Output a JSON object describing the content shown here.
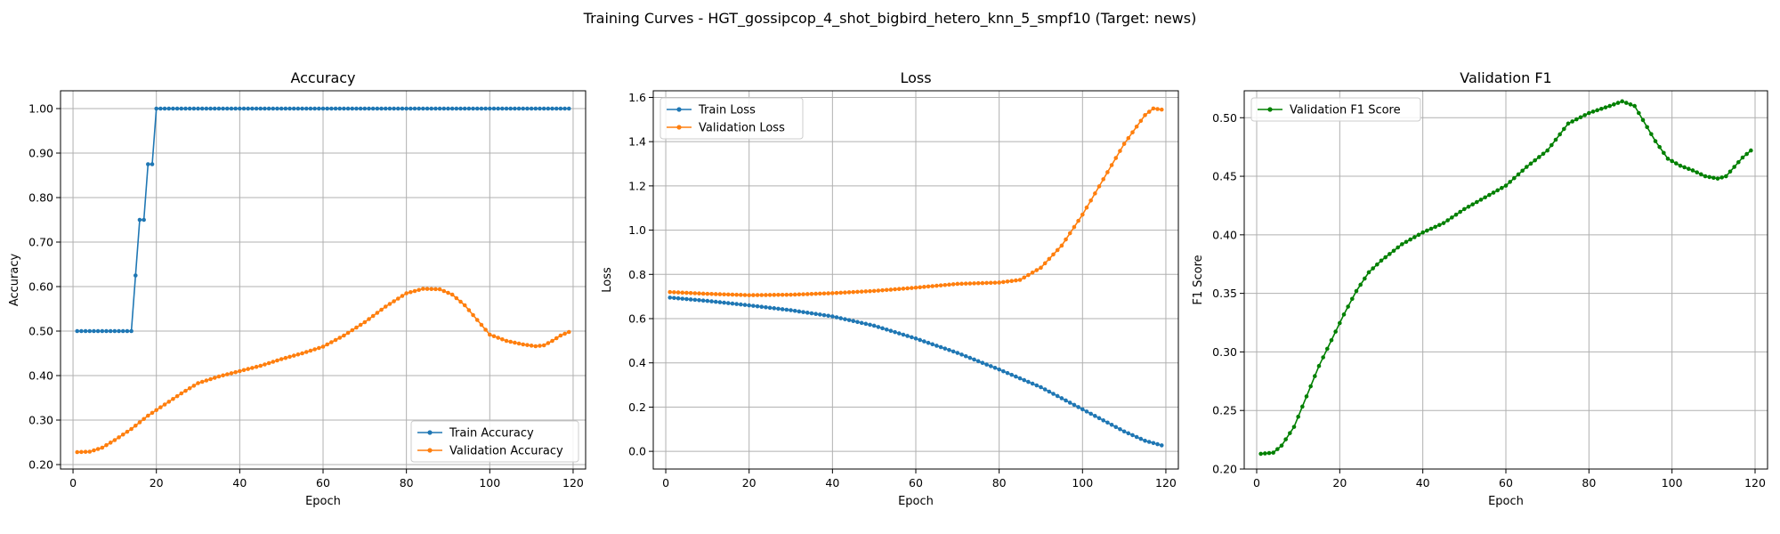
{
  "figure": {
    "title": "Training Curves - HGT_gossipcop_4_shot_bigbird_hetero_knn_5_smpf10 (Target: news)"
  },
  "colors": {
    "train": "#1f77b4",
    "validation": "#ff7f0e",
    "f1": "#008000"
  },
  "chart_data": [
    {
      "type": "line",
      "title": "Accuracy",
      "xlabel": "Epoch",
      "ylabel": "Accuracy",
      "xlim": [
        -3,
        123
      ],
      "ylim": [
        0.19,
        1.04
      ],
      "xticks": [
        0,
        20,
        40,
        60,
        80,
        100,
        120
      ],
      "yticks": [
        0.2,
        0.3,
        0.4,
        0.5,
        0.6,
        0.7,
        0.8,
        0.9,
        1.0
      ],
      "grid": true,
      "legend": "lower right",
      "x": {
        "start": 1,
        "end": 119
      },
      "series": [
        {
          "name": "Train Accuracy",
          "color": "#1f77b4",
          "knots": [
            [
              1,
              0.5
            ],
            [
              14,
              0.5
            ],
            [
              15,
              0.625
            ],
            [
              16,
              0.75
            ],
            [
              17,
              0.75
            ],
            [
              18,
              0.875
            ],
            [
              19,
              0.875
            ],
            [
              20,
              1.0
            ],
            [
              119,
              1.0
            ]
          ]
        },
        {
          "name": "Validation Accuracy",
          "color": "#ff7f0e",
          "knots": [
            [
              1,
              0.228
            ],
            [
              4,
              0.229
            ],
            [
              7,
              0.238
            ],
            [
              10,
              0.255
            ],
            [
              14,
              0.28
            ],
            [
              18,
              0.31
            ],
            [
              22,
              0.335
            ],
            [
              26,
              0.36
            ],
            [
              30,
              0.383
            ],
            [
              35,
              0.398
            ],
            [
              40,
              0.41
            ],
            [
              45,
              0.422
            ],
            [
              50,
              0.437
            ],
            [
              55,
              0.45
            ],
            [
              60,
              0.465
            ],
            [
              65,
              0.49
            ],
            [
              70,
              0.52
            ],
            [
              75,
              0.555
            ],
            [
              80,
              0.585
            ],
            [
              84,
              0.595
            ],
            [
              88,
              0.594
            ],
            [
              91,
              0.582
            ],
            [
              94,
              0.558
            ],
            [
              97,
              0.525
            ],
            [
              100,
              0.492
            ],
            [
              104,
              0.478
            ],
            [
              108,
              0.47
            ],
            [
              111,
              0.466
            ],
            [
              113,
              0.468
            ],
            [
              115,
              0.478
            ],
            [
              117,
              0.49
            ],
            [
              119,
              0.498
            ]
          ]
        }
      ]
    },
    {
      "type": "line",
      "title": "Loss",
      "xlabel": "Epoch",
      "ylabel": "Loss",
      "xlim": [
        -3,
        123
      ],
      "ylim": [
        -0.08,
        1.63
      ],
      "xticks": [
        0,
        20,
        40,
        60,
        80,
        100,
        120
      ],
      "yticks": [
        0.0,
        0.2,
        0.4,
        0.6,
        0.8,
        1.0,
        1.2,
        1.4,
        1.6
      ],
      "grid": true,
      "legend": "upper left",
      "x": {
        "start": 1,
        "end": 119
      },
      "series": [
        {
          "name": "Train Loss",
          "color": "#1f77b4",
          "knots": [
            [
              1,
              0.695
            ],
            [
              10,
              0.68
            ],
            [
              20,
              0.66
            ],
            [
              30,
              0.638
            ],
            [
              40,
              0.61
            ],
            [
              50,
              0.568
            ],
            [
              60,
              0.51
            ],
            [
              70,
              0.445
            ],
            [
              80,
              0.37
            ],
            [
              90,
              0.29
            ],
            [
              100,
              0.19
            ],
            [
              110,
              0.09
            ],
            [
              115,
              0.048
            ],
            [
              119,
              0.027
            ]
          ]
        },
        {
          "name": "Validation Loss",
          "color": "#ff7f0e",
          "knots": [
            [
              1,
              0.72
            ],
            [
              10,
              0.712
            ],
            [
              20,
              0.706
            ],
            [
              30,
              0.708
            ],
            [
              40,
              0.715
            ],
            [
              50,
              0.725
            ],
            [
              60,
              0.74
            ],
            [
              70,
              0.757
            ],
            [
              80,
              0.763
            ],
            [
              85,
              0.775
            ],
            [
              90,
              0.83
            ],
            [
              95,
              0.93
            ],
            [
              100,
              1.07
            ],
            [
              105,
              1.23
            ],
            [
              110,
              1.39
            ],
            [
              115,
              1.52
            ],
            [
              117,
              1.55
            ],
            [
              119,
              1.545
            ]
          ]
        }
      ]
    },
    {
      "type": "line",
      "title": "Validation F1",
      "xlabel": "Epoch",
      "ylabel": "F1 Score",
      "xlim": [
        -3,
        123
      ],
      "ylim": [
        0.2,
        0.523
      ],
      "xticks": [
        0,
        20,
        40,
        60,
        80,
        100,
        120
      ],
      "yticks": [
        0.2,
        0.25,
        0.3,
        0.35,
        0.4,
        0.45,
        0.5
      ],
      "grid": true,
      "legend": "upper left",
      "x": {
        "start": 1,
        "end": 119
      },
      "series": [
        {
          "name": "Validation F1 Score",
          "color": "#008000",
          "knots": [
            [
              1,
              0.213
            ],
            [
              4,
              0.214
            ],
            [
              6,
              0.22
            ],
            [
              9,
              0.236
            ],
            [
              12,
              0.262
            ],
            [
              15,
              0.288
            ],
            [
              18,
              0.31
            ],
            [
              21,
              0.332
            ],
            [
              24,
              0.352
            ],
            [
              27,
              0.368
            ],
            [
              30,
              0.378
            ],
            [
              35,
              0.392
            ],
            [
              40,
              0.402
            ],
            [
              45,
              0.41
            ],
            [
              50,
              0.422
            ],
            [
              55,
              0.432
            ],
            [
              60,
              0.442
            ],
            [
              65,
              0.458
            ],
            [
              70,
              0.472
            ],
            [
              75,
              0.495
            ],
            [
              80,
              0.504
            ],
            [
              85,
              0.51
            ],
            [
              88,
              0.514
            ],
            [
              91,
              0.51
            ],
            [
              93,
              0.498
            ],
            [
              96,
              0.48
            ],
            [
              99,
              0.465
            ],
            [
              102,
              0.459
            ],
            [
              105,
              0.455
            ],
            [
              108,
              0.45
            ],
            [
              111,
              0.448
            ],
            [
              113,
              0.45
            ],
            [
              115,
              0.458
            ],
            [
              117,
              0.466
            ],
            [
              119,
              0.472
            ]
          ]
        }
      ]
    }
  ]
}
